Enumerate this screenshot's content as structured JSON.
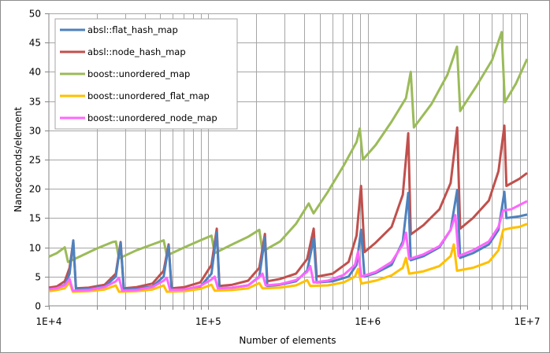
{
  "chart_data": {
    "type": "line",
    "title": "",
    "xlabel": "Number of elements",
    "ylabel": "Nanoseconds/element",
    "xscale": "log",
    "xlim": [
      10000,
      10000000
    ],
    "ylim": [
      0,
      50
    ],
    "x_tick_labels": [
      "1E+4",
      "1E+5",
      "1E+6",
      "1E+7"
    ],
    "y_tick_labels": [
      "0",
      "5",
      "10",
      "15",
      "20",
      "25",
      "30",
      "35",
      "40",
      "45",
      "50"
    ],
    "grid": true,
    "legend_position": "top-left inside",
    "series": [
      {
        "name": "absl::flat_hash_map",
        "color": "#4f81bd",
        "points_log10x": [
          [
            4.0,
            2.9
          ],
          [
            4.05,
            3.0
          ],
          [
            4.1,
            3.6
          ],
          [
            4.13,
            5.5
          ],
          [
            4.153,
            11.2
          ],
          [
            4.17,
            2.8
          ],
          [
            4.25,
            2.9
          ],
          [
            4.35,
            3.3
          ],
          [
            4.42,
            5.0
          ],
          [
            4.45,
            10.7
          ],
          [
            4.47,
            2.8
          ],
          [
            4.55,
            2.9
          ],
          [
            4.65,
            3.3
          ],
          [
            4.72,
            5.0
          ],
          [
            4.751,
            10.3
          ],
          [
            4.77,
            2.7
          ],
          [
            4.85,
            2.8
          ],
          [
            4.95,
            3.3
          ],
          [
            5.02,
            5.5
          ],
          [
            5.053,
            12.6
          ],
          [
            5.07,
            3.0
          ],
          [
            5.15,
            3.1
          ],
          [
            5.25,
            3.5
          ],
          [
            5.32,
            5.0
          ],
          [
            5.355,
            11.7
          ],
          [
            5.37,
            3.4
          ],
          [
            5.45,
            3.6
          ],
          [
            5.55,
            4.2
          ],
          [
            5.62,
            6.0
          ],
          [
            5.661,
            11.5
          ],
          [
            5.68,
            4.0
          ],
          [
            5.78,
            4.2
          ],
          [
            5.88,
            5.0
          ],
          [
            5.93,
            7.0
          ],
          [
            5.958,
            13.0
          ],
          [
            5.98,
            5.0
          ],
          [
            6.05,
            5.6
          ],
          [
            6.15,
            7.0
          ],
          [
            6.22,
            11.0
          ],
          [
            6.254,
            19.3
          ],
          [
            6.27,
            7.8
          ],
          [
            6.35,
            8.5
          ],
          [
            6.45,
            10.0
          ],
          [
            6.52,
            13.0
          ],
          [
            6.561,
            19.8
          ],
          [
            6.58,
            8.2
          ],
          [
            6.66,
            9.0
          ],
          [
            6.76,
            10.5
          ],
          [
            6.82,
            13.0
          ],
          [
            6.857,
            19.5
          ],
          [
            6.87,
            15.0
          ],
          [
            6.95,
            15.3
          ],
          [
            7.0,
            15.6
          ]
        ]
      },
      {
        "name": "absl::node_hash_map",
        "color": "#c0504d",
        "points_log10x": [
          [
            4.0,
            3.1
          ],
          [
            4.05,
            3.3
          ],
          [
            4.1,
            4.2
          ],
          [
            4.13,
            6.5
          ],
          [
            4.153,
            11.0
          ],
          [
            4.17,
            3.0
          ],
          [
            4.25,
            3.1
          ],
          [
            4.35,
            3.6
          ],
          [
            4.42,
            5.5
          ],
          [
            4.45,
            10.9
          ],
          [
            4.47,
            3.0
          ],
          [
            4.55,
            3.2
          ],
          [
            4.65,
            3.8
          ],
          [
            4.72,
            6.0
          ],
          [
            4.751,
            10.5
          ],
          [
            4.77,
            3.0
          ],
          [
            4.85,
            3.2
          ],
          [
            4.95,
            4.0
          ],
          [
            5.02,
            7.0
          ],
          [
            5.053,
            13.2
          ],
          [
            5.07,
            3.4
          ],
          [
            5.15,
            3.6
          ],
          [
            5.25,
            4.3
          ],
          [
            5.32,
            6.5
          ],
          [
            5.355,
            12.3
          ],
          [
            5.37,
            4.2
          ],
          [
            5.45,
            4.6
          ],
          [
            5.55,
            5.5
          ],
          [
            5.62,
            8.0
          ],
          [
            5.661,
            13.2
          ],
          [
            5.68,
            5.0
          ],
          [
            5.78,
            5.5
          ],
          [
            5.88,
            7.5
          ],
          [
            5.93,
            12.0
          ],
          [
            5.958,
            20.5
          ],
          [
            5.98,
            9.2
          ],
          [
            6.05,
            10.8
          ],
          [
            6.15,
            13.5
          ],
          [
            6.22,
            19.0
          ],
          [
            6.254,
            29.5
          ],
          [
            6.27,
            12.2
          ],
          [
            6.35,
            13.8
          ],
          [
            6.45,
            16.5
          ],
          [
            6.52,
            21.0
          ],
          [
            6.561,
            30.5
          ],
          [
            6.58,
            13.2
          ],
          [
            6.66,
            15.0
          ],
          [
            6.76,
            18.0
          ],
          [
            6.82,
            23.0
          ],
          [
            6.857,
            30.8
          ],
          [
            6.87,
            20.5
          ],
          [
            6.95,
            21.7
          ],
          [
            7.0,
            22.7
          ]
        ]
      },
      {
        "name": "boost::unordered_map",
        "color": "#9bbb59",
        "points_log10x": [
          [
            4.0,
            8.4
          ],
          [
            4.05,
            9.0
          ],
          [
            4.1,
            10.0
          ],
          [
            4.12,
            7.5
          ],
          [
            4.2,
            8.5
          ],
          [
            4.3,
            9.8
          ],
          [
            4.4,
            10.9
          ],
          [
            4.42,
            11.0
          ],
          [
            4.44,
            8.1
          ],
          [
            4.55,
            9.5
          ],
          [
            4.65,
            10.5
          ],
          [
            4.72,
            11.2
          ],
          [
            4.74,
            8.6
          ],
          [
            4.85,
            10.0
          ],
          [
            4.95,
            11.2
          ],
          [
            5.02,
            12.0
          ],
          [
            5.04,
            9.0
          ],
          [
            5.15,
            10.5
          ],
          [
            5.25,
            11.8
          ],
          [
            5.32,
            13.0
          ],
          [
            5.34,
            9.3
          ],
          [
            5.45,
            11.0
          ],
          [
            5.55,
            14.0
          ],
          [
            5.63,
            17.5
          ],
          [
            5.66,
            15.8
          ],
          [
            5.75,
            19.5
          ],
          [
            5.85,
            24.0
          ],
          [
            5.93,
            28.0
          ],
          [
            5.95,
            30.3
          ],
          [
            5.97,
            25.0
          ],
          [
            6.05,
            27.5
          ],
          [
            6.15,
            31.5
          ],
          [
            6.24,
            35.5
          ],
          [
            6.27,
            40.0
          ],
          [
            6.29,
            30.5
          ],
          [
            6.4,
            34.5
          ],
          [
            6.5,
            39.5
          ],
          [
            6.56,
            44.3
          ],
          [
            6.58,
            33.3
          ],
          [
            6.68,
            37.5
          ],
          [
            6.78,
            42.0
          ],
          [
            6.84,
            46.8
          ],
          [
            6.86,
            34.8
          ],
          [
            6.93,
            38.0
          ],
          [
            7.0,
            42.2
          ]
        ]
      },
      {
        "name": "boost::unordered_flat_map",
        "color": "#ffc000",
        "points_log10x": [
          [
            4.0,
            2.5
          ],
          [
            4.05,
            2.7
          ],
          [
            4.1,
            3.0
          ],
          [
            4.13,
            4.0
          ],
          [
            4.15,
            2.4
          ],
          [
            4.25,
            2.5
          ],
          [
            4.35,
            2.8
          ],
          [
            4.42,
            3.5
          ],
          [
            4.44,
            2.4
          ],
          [
            4.55,
            2.5
          ],
          [
            4.65,
            2.8
          ],
          [
            4.72,
            3.5
          ],
          [
            4.74,
            2.4
          ],
          [
            4.85,
            2.5
          ],
          [
            4.95,
            2.9
          ],
          [
            5.02,
            3.6
          ],
          [
            5.04,
            2.6
          ],
          [
            5.15,
            2.7
          ],
          [
            5.25,
            3.0
          ],
          [
            5.32,
            3.9
          ],
          [
            5.34,
            3.0
          ],
          [
            5.45,
            3.1
          ],
          [
            5.55,
            3.5
          ],
          [
            5.62,
            4.4
          ],
          [
            5.64,
            3.4
          ],
          [
            5.75,
            3.5
          ],
          [
            5.85,
            4.0
          ],
          [
            5.92,
            5.0
          ],
          [
            5.94,
            6.3
          ],
          [
            5.96,
            3.8
          ],
          [
            6.05,
            4.3
          ],
          [
            6.15,
            5.2
          ],
          [
            6.22,
            6.5
          ],
          [
            6.24,
            8.2
          ],
          [
            6.26,
            5.5
          ],
          [
            6.35,
            5.9
          ],
          [
            6.45,
            6.8
          ],
          [
            6.52,
            8.5
          ],
          [
            6.54,
            10.5
          ],
          [
            6.56,
            6.0
          ],
          [
            6.66,
            6.5
          ],
          [
            6.76,
            7.5
          ],
          [
            6.82,
            9.5
          ],
          [
            6.85,
            13.0
          ],
          [
            6.9,
            13.3
          ],
          [
            6.95,
            13.5
          ],
          [
            7.0,
            14.0
          ]
        ]
      },
      {
        "name": "boost::unordered_node_map",
        "color": "#ff66ff",
        "points_log10x": [
          [
            4.0,
            2.8
          ],
          [
            4.05,
            3.0
          ],
          [
            4.1,
            3.5
          ],
          [
            4.13,
            4.6
          ],
          [
            4.15,
            2.6
          ],
          [
            4.25,
            2.7
          ],
          [
            4.35,
            3.2
          ],
          [
            4.42,
            4.2
          ],
          [
            4.44,
            4.8
          ],
          [
            4.46,
            2.6
          ],
          [
            4.55,
            2.7
          ],
          [
            4.65,
            3.2
          ],
          [
            4.72,
            4.3
          ],
          [
            4.74,
            4.8
          ],
          [
            4.76,
            2.7
          ],
          [
            4.85,
            2.8
          ],
          [
            4.95,
            3.4
          ],
          [
            5.02,
            4.5
          ],
          [
            5.04,
            5.0
          ],
          [
            5.06,
            3.0
          ],
          [
            5.15,
            3.1
          ],
          [
            5.25,
            3.5
          ],
          [
            5.32,
            4.9
          ],
          [
            5.34,
            5.5
          ],
          [
            5.36,
            3.5
          ],
          [
            5.45,
            3.7
          ],
          [
            5.55,
            4.4
          ],
          [
            5.62,
            5.8
          ],
          [
            5.64,
            6.8
          ],
          [
            5.66,
            4.0
          ],
          [
            5.75,
            4.3
          ],
          [
            5.85,
            5.3
          ],
          [
            5.92,
            7.0
          ],
          [
            5.94,
            9.3
          ],
          [
            5.96,
            5.0
          ],
          [
            6.05,
            5.8
          ],
          [
            6.15,
            7.5
          ],
          [
            6.22,
            10.5
          ],
          [
            6.24,
            12.5
          ],
          [
            6.26,
            8.0
          ],
          [
            6.35,
            8.8
          ],
          [
            6.45,
            10.2
          ],
          [
            6.52,
            13.0
          ],
          [
            6.55,
            15.5
          ],
          [
            6.57,
            8.5
          ],
          [
            6.66,
            9.5
          ],
          [
            6.76,
            11.0
          ],
          [
            6.82,
            13.5
          ],
          [
            6.85,
            16.3
          ],
          [
            6.9,
            16.5
          ],
          [
            6.95,
            17.2
          ],
          [
            7.0,
            17.9
          ]
        ]
      }
    ]
  }
}
